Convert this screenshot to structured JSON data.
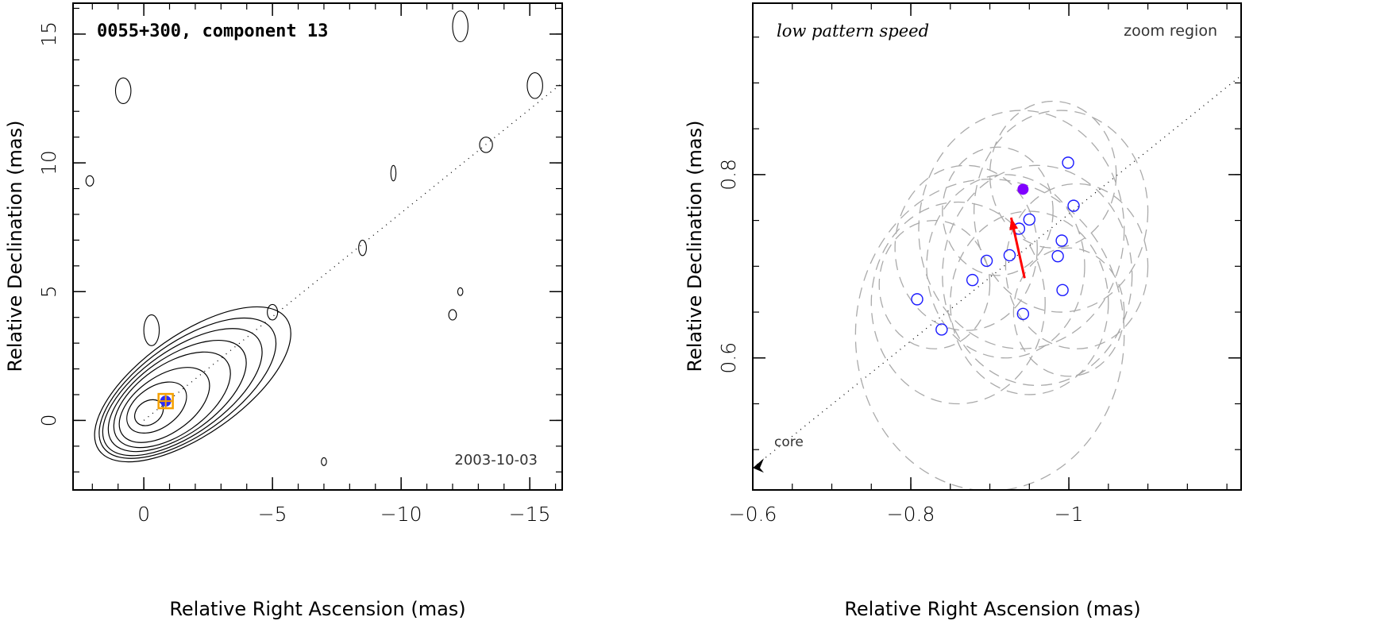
{
  "chart_data": [
    {
      "type": "contour",
      "title": "0055+300, component 13",
      "date": "2003-10-03",
      "xlabel": "Relative Right Ascension (mas)",
      "ylabel": "Relative Declination (mas)",
      "xlim": [
        2.75,
        -16.26
      ],
      "ylim": [
        -2.7,
        16.2
      ],
      "xticks": [
        0,
        -5,
        -10,
        -15
      ],
      "xtick_labels": [
        "0",
        "−5",
        "−10",
        "−15"
      ],
      "yticks": [
        0,
        5,
        10,
        15
      ],
      "ytick_labels": [
        "0",
        "5",
        "10",
        "15"
      ],
      "component": {
        "x": -0.85,
        "y": 0.75,
        "marker_color": "#f5a000",
        "fill_color": "#2a2aff"
      },
      "jet_axis": {
        "from": [
          0,
          0
        ],
        "to": [
          -16.26,
          13.1
        ]
      },
      "contours": [
        {
          "cx": -0.2,
          "cy": 0.3,
          "rx": 0.6,
          "ry": 0.45,
          "angle": -35
        },
        {
          "cx": -0.5,
          "cy": 0.5,
          "rx": 1.3,
          "ry": 0.8,
          "angle": -35
        },
        {
          "cx": -0.8,
          "cy": 0.6,
          "rx": 2.0,
          "ry": 1.1,
          "angle": -35
        },
        {
          "cx": -1.1,
          "cy": 0.8,
          "rx": 2.6,
          "ry": 1.35,
          "angle": -35
        },
        {
          "cx": -1.3,
          "cy": 0.95,
          "rx": 3.1,
          "ry": 1.5,
          "angle": -35
        },
        {
          "cx": -1.5,
          "cy": 1.1,
          "rx": 3.6,
          "ry": 1.65,
          "angle": -35
        },
        {
          "cx": -1.7,
          "cy": 1.25,
          "rx": 4.0,
          "ry": 1.8,
          "angle": -35
        },
        {
          "cx": -1.9,
          "cy": 1.4,
          "rx": 4.45,
          "ry": 1.95,
          "angle": -35
        }
      ],
      "noise_islands": [
        {
          "cx": -0.3,
          "cy": 3.5,
          "rx": 0.3,
          "ry": 0.6
        },
        {
          "cx": -5.0,
          "cy": 4.2,
          "rx": 0.2,
          "ry": 0.3
        },
        {
          "cx": -8.5,
          "cy": 6.7,
          "rx": 0.15,
          "ry": 0.3
        },
        {
          "cx": -13.3,
          "cy": 10.7,
          "rx": 0.25,
          "ry": 0.3
        },
        {
          "cx": -15.2,
          "cy": 13.0,
          "rx": 0.3,
          "ry": 0.5
        },
        {
          "cx": -9.7,
          "cy": 9.6,
          "rx": 0.1,
          "ry": 0.3
        },
        {
          "cx": -12.3,
          "cy": 15.3,
          "rx": 0.3,
          "ry": 0.6
        },
        {
          "cx": 0.8,
          "cy": 12.8,
          "rx": 0.3,
          "ry": 0.5
        },
        {
          "cx": -12.0,
          "cy": 4.1,
          "rx": 0.15,
          "ry": 0.2
        },
        {
          "cx": -12.3,
          "cy": 5.0,
          "rx": 0.1,
          "ry": 0.15
        },
        {
          "cx": -7.0,
          "cy": -1.6,
          "rx": 0.1,
          "ry": 0.15
        },
        {
          "cx": 2.1,
          "cy": 9.3,
          "rx": 0.15,
          "ry": 0.2
        }
      ]
    },
    {
      "type": "scatter",
      "title": "low pattern speed",
      "annotation": "zoom region",
      "core_label": "core",
      "xlabel": "Relative Right Ascension (mas)",
      "ylabel": "Relative Declination (mas)",
      "xlim": [
        -0.6,
        -1.218
      ],
      "ylim": [
        0.456,
        0.987
      ],
      "xticks": [
        -0.6,
        -0.8,
        -1.0
      ],
      "xtick_labels": [
        "−0.6",
        "−0.8",
        "−1"
      ],
      "yticks": [
        0.6,
        0.8
      ],
      "ytick_labels": [
        "0.6",
        "0.8"
      ],
      "core": {
        "x": -0.6,
        "y": 0.48
      },
      "jet_axis": {
        "from": [
          -0.6,
          0.48
        ],
        "to": [
          -1.218,
          0.908
        ]
      },
      "points": [
        {
          "x": -0.999,
          "y": 0.813
        },
        {
          "x": -1.006,
          "y": 0.766
        },
        {
          "x": -0.95,
          "y": 0.751
        },
        {
          "x": -0.937,
          "y": 0.741
        },
        {
          "x": -0.991,
          "y": 0.728
        },
        {
          "x": -0.986,
          "y": 0.711
        },
        {
          "x": -0.925,
          "y": 0.712
        },
        {
          "x": -0.896,
          "y": 0.706
        },
        {
          "x": -0.878,
          "y": 0.685
        },
        {
          "x": -0.992,
          "y": 0.674
        },
        {
          "x": -0.942,
          "y": 0.648
        },
        {
          "x": -0.808,
          "y": 0.664
        },
        {
          "x": -0.839,
          "y": 0.631
        }
      ],
      "point_color": "#1a1aff",
      "mean_position": {
        "x": -0.942,
        "y": 0.784,
        "color": "#8000ff"
      },
      "velocity_arrow": {
        "from": [
          -0.944,
          0.687
        ],
        "to": [
          -0.927,
          0.753
        ],
        "color": "#ff0000"
      },
      "error_circles": [
        {
          "cx": -0.9,
          "cy": 0.625,
          "r": 0.17
        },
        {
          "cx": -0.86,
          "cy": 0.66,
          "r": 0.11
        },
        {
          "cx": -0.94,
          "cy": 0.74,
          "r": 0.13
        },
        {
          "cx": -0.99,
          "cy": 0.76,
          "r": 0.11
        },
        {
          "cx": -0.96,
          "cy": 0.69,
          "r": 0.12
        },
        {
          "cx": -0.92,
          "cy": 0.7,
          "r": 0.1
        },
        {
          "cx": -1.01,
          "cy": 0.7,
          "r": 0.09
        },
        {
          "cx": -0.87,
          "cy": 0.72,
          "r": 0.09
        },
        {
          "cx": -0.95,
          "cy": 0.66,
          "r": 0.1
        },
        {
          "cx": -0.98,
          "cy": 0.8,
          "r": 0.08
        },
        {
          "cx": -0.83,
          "cy": 0.68,
          "r": 0.07
        },
        {
          "cx": -0.91,
          "cy": 0.76,
          "r": 0.07
        },
        {
          "cx": -1.0,
          "cy": 0.65,
          "r": 0.07
        }
      ]
    }
  ]
}
